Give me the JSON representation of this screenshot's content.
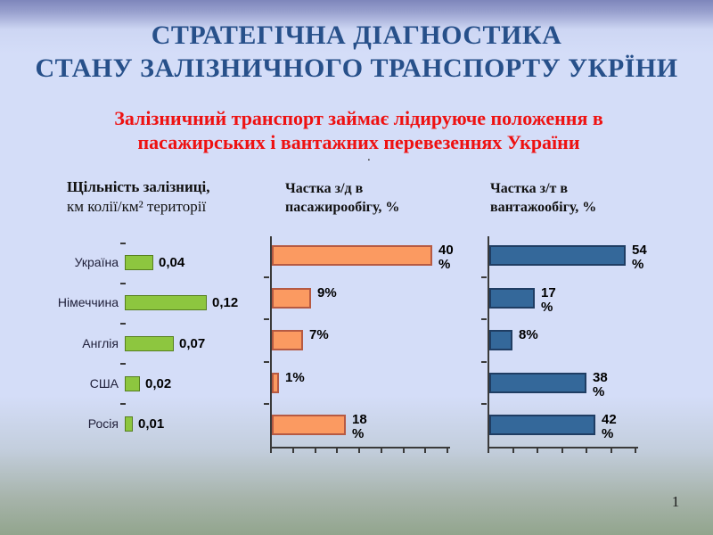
{
  "slide": {
    "title_line1": "СТРАТЕГІЧНА ДІАГНОСТИКА",
    "title_line2": "СТАНУ ЗАЛІЗНИЧНОГО ТРАНСПОРТУ УКРЇНИ",
    "subtitle_line1": "Залізничний транспорт займає лідируюче положення в",
    "subtitle_line2": "пасажирських і вантажних перевезеннях України",
    "stray_dot": ".",
    "page_number": "1",
    "colors": {
      "title": "#27508A",
      "subtitle": "#EE1111",
      "background_top": "#7E86BB",
      "background_main": "#D4DDF8",
      "background_bottom": "#92A58D",
      "axis": "#3A3A3A"
    }
  },
  "chart_data": [
    {
      "type": "bar",
      "orientation": "horizontal",
      "title": "Щільність залізниці, км колії/км² території",
      "title_lines": [
        "Щільність залізниці,",
        "км колії/км² території"
      ],
      "categories": [
        "Україна",
        "Німеччина",
        "Англія",
        "США",
        "Росія"
      ],
      "values": [
        0.04,
        0.12,
        0.07,
        0.02,
        0.01
      ],
      "value_labels": [
        "0,04",
        "0,12",
        "0,07",
        "0,02",
        "0,01"
      ],
      "xlim": [
        0,
        0.2
      ],
      "grid": false,
      "legend": "none",
      "bar_color": "#8DC63F",
      "bar_border": "#567F1F"
    },
    {
      "type": "bar",
      "orientation": "horizontal",
      "title": "Частка з/д в пасажирообігу, %",
      "title_lines": [
        "Частка з/д в",
        "пасажирообігу, %"
      ],
      "categories": [
        "Україна",
        "Німеччина",
        "Англія",
        "США",
        "Росія"
      ],
      "values": [
        40,
        9,
        7,
        1,
        18
      ],
      "value_labels": [
        "40 %",
        "9%",
        "7%",
        "1%",
        "18 %"
      ],
      "xlim": [
        0,
        45
      ],
      "grid": false,
      "legend": "none",
      "bar_color": "#FB9A61",
      "bar_border": "#B65A43"
    },
    {
      "type": "bar",
      "orientation": "horizontal",
      "title": "Частка з/т в вантажообігу, %",
      "title_lines": [
        "Частка з/т в",
        "вантажообігу, %"
      ],
      "categories": [
        "Україна",
        "Німеччина",
        "Англія",
        "США",
        "Росія"
      ],
      "values": [
        54,
        17,
        8,
        38,
        42
      ],
      "value_labels": [
        "54 %",
        "17 %",
        "8%",
        "38 %",
        "42 %"
      ],
      "xlim": [
        0,
        60
      ],
      "grid": false,
      "legend": "none",
      "bar_color": "#34689A",
      "bar_border": "#1F3D63"
    }
  ]
}
